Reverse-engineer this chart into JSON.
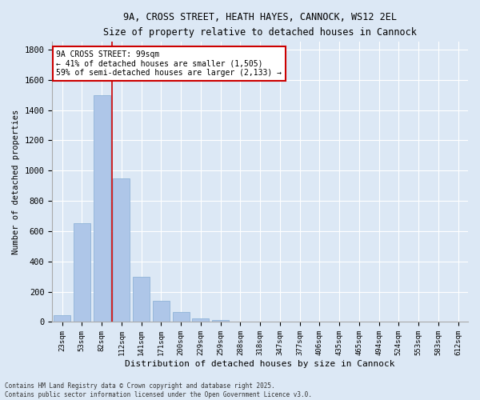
{
  "title1": "9A, CROSS STREET, HEATH HAYES, CANNOCK, WS12 2EL",
  "title2": "Size of property relative to detached houses in Cannock",
  "xlabel": "Distribution of detached houses by size in Cannock",
  "ylabel": "Number of detached properties",
  "categories": [
    "23sqm",
    "53sqm",
    "82sqm",
    "112sqm",
    "141sqm",
    "171sqm",
    "200sqm",
    "229sqm",
    "259sqm",
    "288sqm",
    "318sqm",
    "347sqm",
    "377sqm",
    "406sqm",
    "435sqm",
    "465sqm",
    "494sqm",
    "524sqm",
    "553sqm",
    "583sqm",
    "612sqm"
  ],
  "values": [
    45,
    650,
    1500,
    950,
    300,
    140,
    65,
    25,
    15,
    5,
    3,
    2,
    1,
    1,
    0,
    0,
    0,
    0,
    0,
    0,
    0
  ],
  "bar_color": "#aec6e8",
  "bar_edge_color": "#90b4d8",
  "vline_x": 2.5,
  "vline_color": "#cc0000",
  "annotation_text": "9A CROSS STREET: 99sqm\n← 41% of detached houses are smaller (1,505)\n59% of semi-detached houses are larger (2,133) →",
  "annotation_box_color": "#ffffff",
  "annotation_box_edge": "#cc0000",
  "background_color": "#dce8f5",
  "plot_bg_color": "#dce8f5",
  "ylim": [
    0,
    1850
  ],
  "yticks": [
    0,
    200,
    400,
    600,
    800,
    1000,
    1200,
    1400,
    1600,
    1800
  ],
  "footer1": "Contains HM Land Registry data © Crown copyright and database right 2025.",
  "footer2": "Contains public sector information licensed under the Open Government Licence v3.0."
}
